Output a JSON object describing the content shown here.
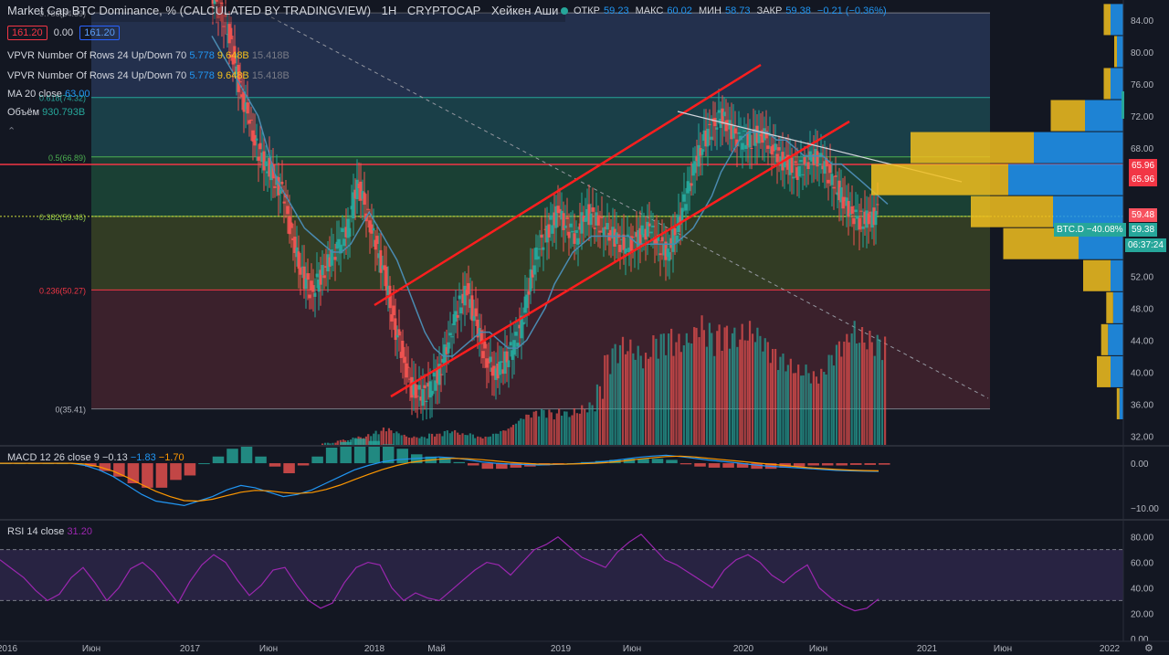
{
  "header": {
    "title": "Market Cap BTC Dominance, % (CALCULATED BY TRADINGVIEW)",
    "interval": "1H",
    "exchange": "CRYPTOCAP",
    "chart_style": "Хейкен Аши",
    "ohlc": {
      "o_label": "ОТКР",
      "o": "59.23",
      "h_label": "МАКС",
      "h": "60.02",
      "l_label": "МИН",
      "l": "58.73",
      "c_label": "ЗАКР",
      "c": "59.38",
      "chg": "−0.21 (−0.36%)"
    },
    "sell_price": "161.20",
    "spread": "0.00",
    "buy_price": "161.20"
  },
  "indicators": {
    "vpvr1": {
      "label": "VPVR Number Of Rows 24 Up/Down 70",
      "up": "5.778",
      "down": "9.648B",
      "total": "15.418B"
    },
    "vpvr2": {
      "label": "VPVR Number Of Rows 24 Up/Down 70",
      "up": "5.778",
      "down": "9.648B",
      "total": "15.418B"
    },
    "ma": {
      "label": "MA 20 close",
      "value": "63.00"
    },
    "volume": {
      "label": "Объём",
      "value": "930.793B"
    },
    "macd": {
      "label": "MACD 12 26 close 9",
      "hist": "−0.13",
      "macd": "−1.83",
      "signal": "−1.70"
    },
    "rsi": {
      "label": "RSI 14 close",
      "value": "31.20"
    }
  },
  "price_tags": {
    "level1": "65.96",
    "level2": "65.96",
    "last": "59.48",
    "symbol": "BTC.D",
    "pct": "−40.08%",
    "close": "59.38",
    "countdown": "06:37:24"
  },
  "colors": {
    "bg": "#131722",
    "up": "#26a69a",
    "down": "#ef5350",
    "channel": "#ff1e1e",
    "ma": "#4a8ab0",
    "vpvr_up": "#2196f3",
    "vpvr_down": "#f2c01e",
    "macd": "#2196f3",
    "signal": "#ff9800",
    "rsi": "#9c27b0"
  },
  "chart_data": [
    {
      "type": "line",
      "name": "main",
      "y_ticks": [
        "84.00",
        "80.00",
        "76.00",
        "72.00",
        "68.00",
        "64.00",
        "60.00",
        "56.00",
        "52.00",
        "48.00",
        "44.00",
        "40.00",
        "36.00",
        "32.00"
      ],
      "ylim": [
        30.8,
        86.5
      ],
      "x_ticks": [
        "2016",
        "Июн",
        "2017",
        "Июн",
        "2018",
        "Май",
        "2019",
        "Июн",
        "2020",
        "Июн",
        "2021",
        "Июн",
        "2022"
      ],
      "fib_levels": [
        {
          "label": "0.786(84.89)",
          "value": 84.89
        },
        {
          "label": "0.618(74.32)",
          "value": 74.32
        },
        {
          "label": "0.5(66.89)",
          "value": 66.89
        },
        {
          "label": "0.382(59.46)",
          "value": 59.46
        },
        {
          "label": "0.236(50.27)",
          "value": 50.27
        },
        {
          "label": "0(35.41)",
          "value": 35.41
        }
      ],
      "horizontal_line": 65.96,
      "close_series": [
        87,
        85,
        82,
        76,
        72,
        68,
        66,
        64,
        62,
        56,
        52,
        50,
        52,
        54,
        56,
        58,
        64,
        60,
        56,
        52,
        46,
        42,
        38,
        37,
        38,
        40,
        44,
        48,
        50,
        46,
        42,
        40,
        41,
        43,
        46,
        52,
        56,
        58,
        60,
        58,
        57,
        60,
        59,
        58,
        57,
        56,
        56,
        57,
        58,
        56,
        55,
        58,
        62,
        66,
        69,
        71,
        72,
        70,
        69,
        69,
        70,
        69,
        67,
        66,
        65,
        66,
        67,
        66,
        64,
        62,
        60,
        59,
        59,
        60
      ],
      "ma_series": [
        82,
        80,
        78,
        76,
        74,
        72,
        68,
        64,
        62,
        60,
        58,
        57,
        56,
        55,
        55,
        56,
        58,
        60,
        58,
        56,
        54,
        51,
        48,
        45,
        43,
        42,
        42,
        43,
        44,
        45,
        45,
        44,
        43,
        43,
        44,
        46,
        48,
        51,
        53,
        55,
        56,
        57,
        57,
        57,
        57,
        57,
        56,
        56,
        56,
        56,
        56,
        57,
        58,
        60,
        62,
        65,
        67,
        69,
        70,
        70,
        70,
        69,
        69,
        68,
        67,
        67,
        67,
        66,
        66,
        65,
        64,
        63,
        62,
        61
      ]
    },
    {
      "type": "bar",
      "name": "volume",
      "values": [
        1,
        1,
        2,
        2,
        3,
        3,
        4,
        5,
        6,
        5,
        4,
        3,
        3,
        3,
        4,
        4,
        5,
        5,
        4,
        4,
        3,
        3,
        4,
        5,
        6,
        8,
        10,
        11,
        12,
        12,
        11,
        12,
        11,
        12,
        13,
        14,
        20,
        30,
        33,
        35,
        34,
        32,
        30,
        36,
        37,
        38,
        36,
        36,
        38,
        42,
        40,
        38,
        40,
        39,
        38,
        39,
        40,
        38,
        35,
        32,
        30,
        28,
        26,
        26,
        24,
        25,
        30,
        34,
        36,
        40,
        38,
        37,
        36,
        36
      ]
    },
    {
      "type": "line",
      "name": "MACD",
      "y_ticks": [
        "0.00",
        "−10.00"
      ],
      "ylim": [
        -12.5,
        3.5
      ],
      "macd": [
        0,
        0,
        0,
        0,
        0,
        0,
        -0.5,
        -1.5,
        -3,
        -5,
        -7,
        -8.5,
        -9,
        -9.5,
        -8.5,
        -7.5,
        -6,
        -5,
        -5.5,
        -6.5,
        -7.5,
        -7,
        -6,
        -4.5,
        -3,
        -1.5,
        -0.5,
        0.3,
        0.8,
        1,
        1.2,
        1.4,
        1.2,
        0.8,
        0.3,
        0,
        -0.2,
        -0.3,
        -0.4,
        -0.3,
        -0.2,
        0,
        0.2,
        0.5,
        0.9,
        1.3,
        1.6,
        1.8,
        1.5,
        1.1,
        0.7,
        0.4,
        0.1,
        -0.3,
        -0.6,
        -0.8,
        -1,
        -1.2,
        -1.4,
        -1.6,
        -1.7,
        -1.8,
        -1.83
      ],
      "signal": [
        0,
        0,
        0,
        0,
        0,
        0,
        -0.2,
        -0.8,
        -1.8,
        -3.2,
        -4.8,
        -6.3,
        -7.5,
        -8.4,
        -8.5,
        -8.1,
        -7.3,
        -6.5,
        -6.1,
        -6.2,
        -6.6,
        -6.8,
        -6.6,
        -5.9,
        -4.9,
        -3.7,
        -2.5,
        -1.4,
        -0.5,
        0.2,
        0.6,
        0.9,
        1.1,
        1,
        0.8,
        0.5,
        0.2,
        0,
        -0.2,
        -0.2,
        -0.2,
        -0.1,
        0,
        0.2,
        0.5,
        0.9,
        1.2,
        1.5,
        1.6,
        1.4,
        1.1,
        0.8,
        0.5,
        0.2,
        -0.1,
        -0.4,
        -0.7,
        -1,
        -1.2,
        -1.4,
        -1.55,
        -1.65,
        -1.7
      ]
    },
    {
      "type": "line",
      "name": "RSI",
      "y_ticks": [
        "80.00",
        "60.00",
        "40.00",
        "20.00",
        "0.00"
      ],
      "ylim": [
        -2,
        92
      ],
      "bands": [
        30,
        70
      ],
      "values": [
        62,
        55,
        48,
        38,
        30,
        35,
        48,
        56,
        44,
        30,
        40,
        55,
        60,
        52,
        40,
        28,
        45,
        58,
        66,
        60,
        46,
        34,
        42,
        54,
        56,
        42,
        30,
        24,
        28,
        44,
        56,
        60,
        58,
        40,
        30,
        36,
        32,
        30,
        38,
        46,
        54,
        60,
        58,
        50,
        60,
        70,
        74,
        80,
        72,
        64,
        60,
        56,
        68,
        76,
        82,
        72,
        62,
        58,
        52,
        46,
        40,
        54,
        62,
        66,
        60,
        50,
        44,
        52,
        58,
        40,
        32,
        26,
        22,
        24,
        31.2
      ]
    }
  ]
}
